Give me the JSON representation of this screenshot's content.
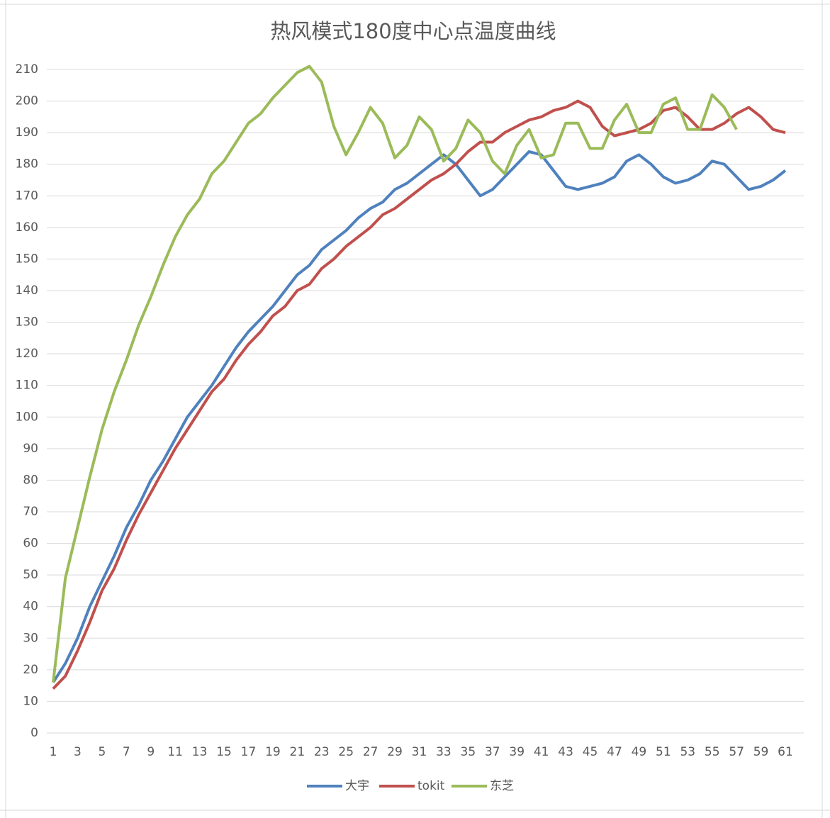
{
  "chart_data": {
    "type": "line",
    "title": "热风模式180度中心点温度曲线",
    "categories": [
      1,
      null,
      3,
      null,
      5,
      null,
      7,
      null,
      9,
      null,
      11,
      null,
      13,
      null,
      15,
      null,
      17,
      null,
      19,
      null,
      21,
      null,
      23,
      null,
      25,
      null,
      27,
      null,
      29,
      null,
      31,
      null,
      33,
      null,
      35,
      null,
      37,
      null,
      39,
      null,
      41,
      null,
      43,
      null,
      45,
      null,
      47,
      null,
      49,
      null,
      51,
      null,
      53,
      null,
      55,
      null,
      57,
      null,
      59,
      null,
      61
    ],
    "series": [
      {
        "name": "大宇",
        "color": "#4f81bd",
        "values": [
          16,
          22,
          30,
          40,
          48,
          56,
          65,
          72,
          80,
          86,
          93,
          100,
          105,
          110,
          116,
          122,
          127,
          131,
          135,
          140,
          145,
          148,
          153,
          156,
          159,
          163,
          166,
          168,
          172,
          174,
          177,
          180,
          183,
          180,
          175,
          170,
          172,
          176,
          180,
          184,
          183,
          178,
          173,
          172,
          173,
          174,
          176,
          181,
          183,
          180,
          176,
          174,
          175,
          177,
          181,
          180,
          176,
          172,
          173,
          175,
          178
        ]
      },
      {
        "name": "tokit",
        "color": "#c0504d",
        "values": [
          14,
          18,
          26,
          35,
          45,
          52,
          61,
          69,
          76,
          83,
          90,
          96,
          102,
          108,
          112,
          118,
          123,
          127,
          132,
          135,
          140,
          142,
          147,
          150,
          154,
          157,
          160,
          164,
          166,
          169,
          172,
          175,
          177,
          180,
          184,
          187,
          187,
          190,
          192,
          194,
          195,
          197,
          198,
          200,
          198,
          192,
          189,
          190,
          191,
          193,
          197,
          198,
          195,
          191,
          191,
          193,
          196,
          198,
          195,
          191,
          190
        ]
      },
      {
        "name": "东芝",
        "color": "#9bbb59",
        "values": [
          16,
          49,
          65,
          81,
          96,
          108,
          118,
          129,
          138,
          148,
          157,
          164,
          169,
          177,
          181,
          187,
          193,
          196,
          201,
          205,
          209,
          211,
          206,
          192,
          183,
          190,
          198,
          193,
          182,
          186,
          195,
          191,
          181,
          185,
          194,
          190,
          181,
          177,
          186,
          191,
          182,
          183,
          193,
          193,
          185,
          185,
          194,
          199,
          190,
          190,
          199,
          201,
          191,
          191,
          202,
          198,
          191,
          null,
          null,
          null,
          null
        ]
      }
    ],
    "ylim": [
      0,
      210
    ],
    "yticks": [
      0,
      10,
      20,
      30,
      40,
      50,
      60,
      70,
      80,
      90,
      100,
      110,
      120,
      130,
      140,
      150,
      160,
      170,
      180,
      190,
      200,
      210
    ],
    "grid": true
  }
}
